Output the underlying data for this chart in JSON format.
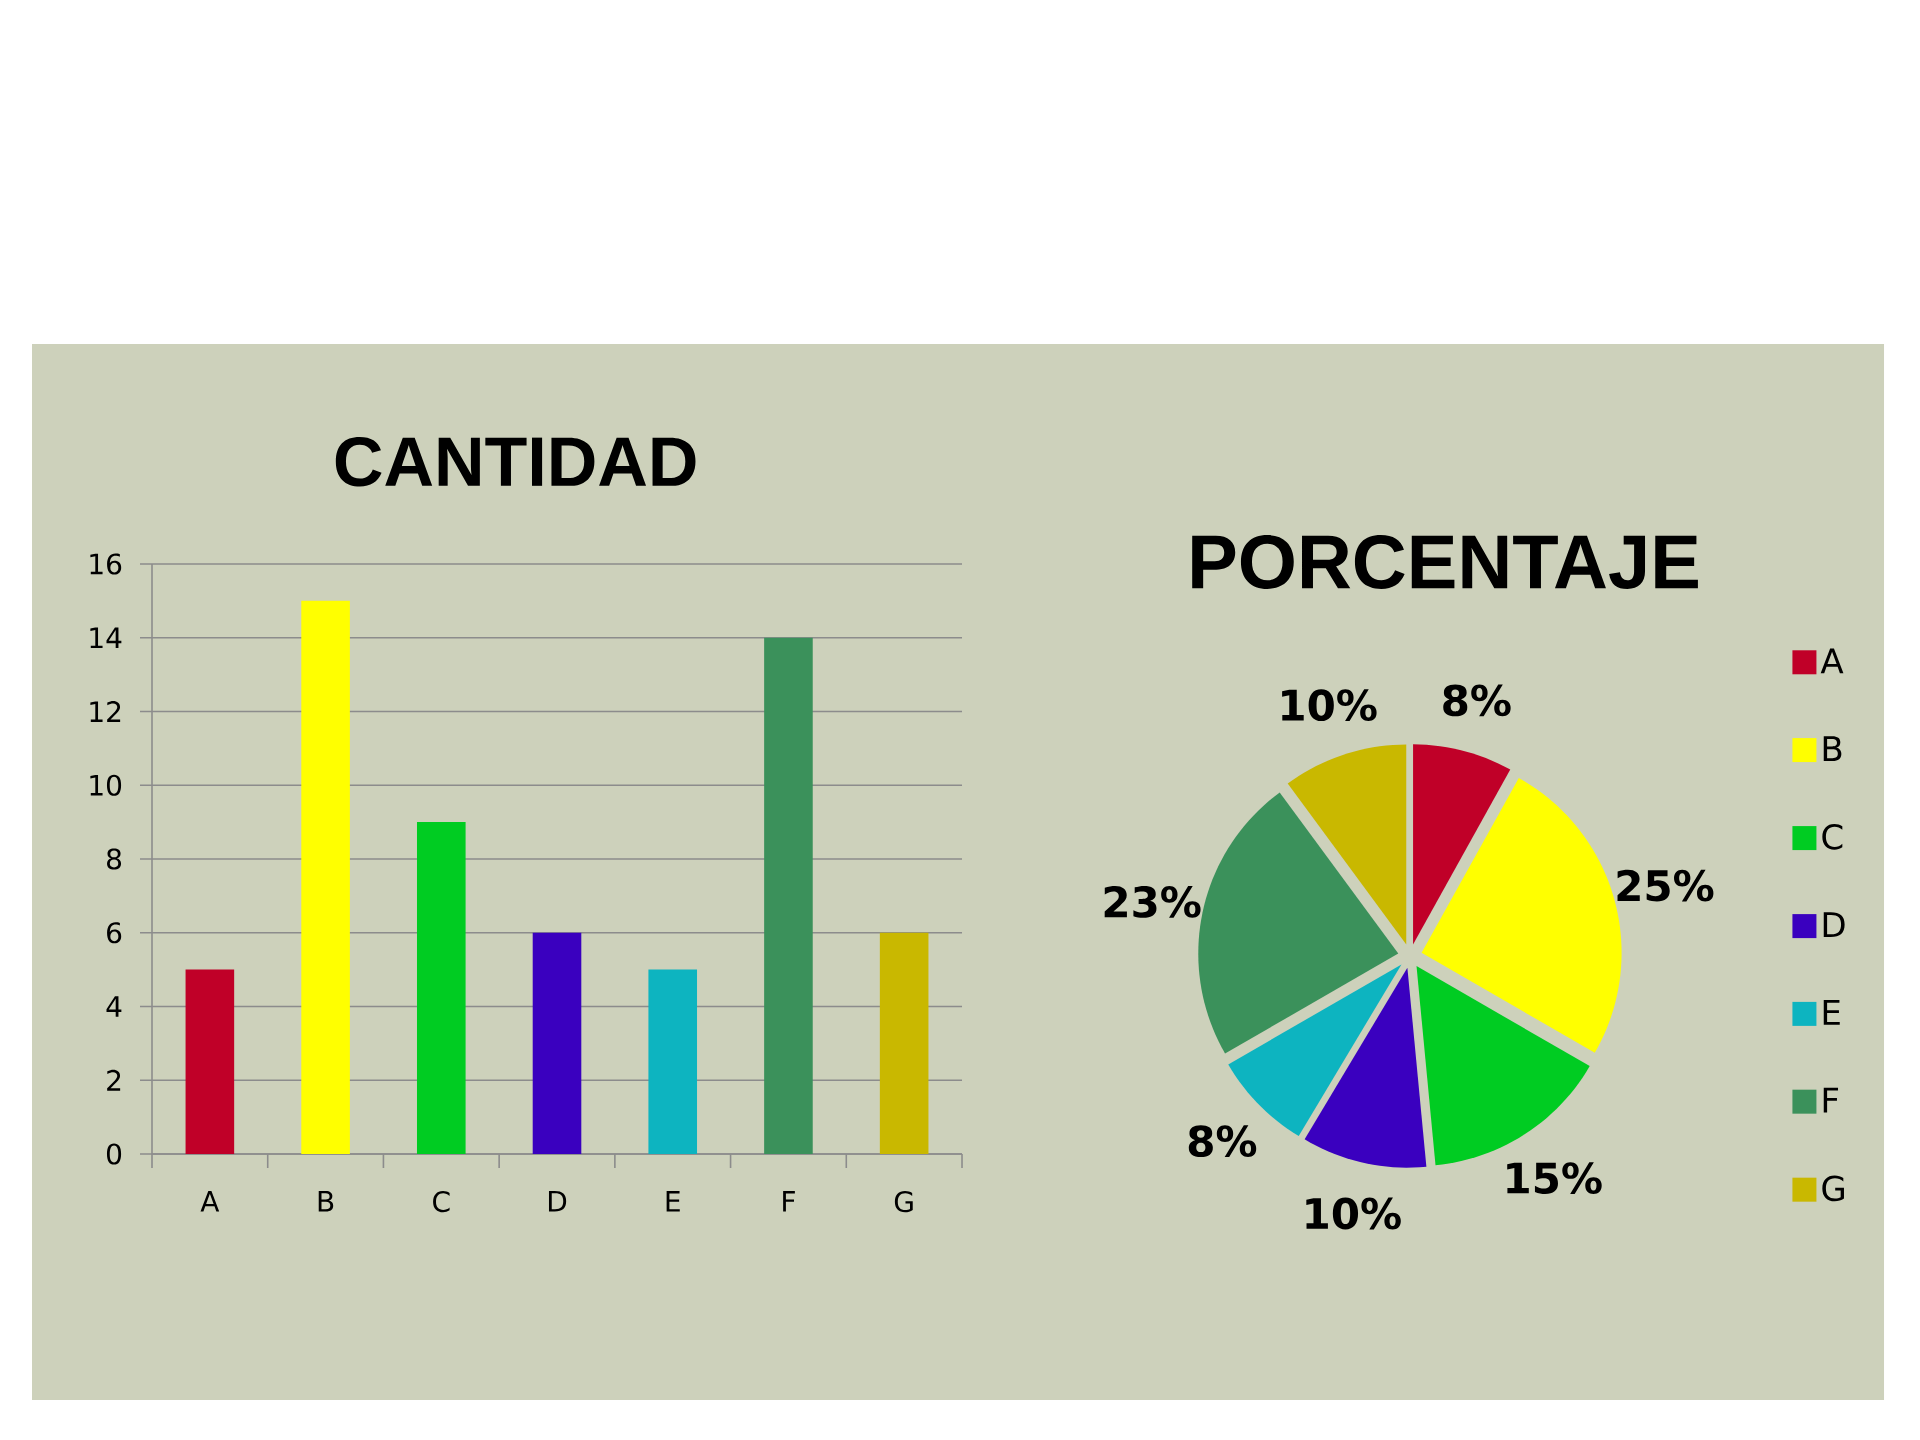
{
  "chart_data": [
    {
      "type": "bar",
      "title": "CANTIDAD",
      "categories": [
        "A",
        "B",
        "C",
        "D",
        "E",
        "F",
        "G"
      ],
      "values": [
        5,
        15,
        9,
        6,
        5,
        14,
        6
      ],
      "colors": [
        "#c00028",
        "#ffff00",
        "#00cc22",
        "#3a00bf",
        "#0db4c0",
        "#3b915b",
        "#c9b800"
      ],
      "ylim": [
        0,
        16
      ],
      "yticks": [
        0,
        2,
        4,
        6,
        8,
        10,
        12,
        14,
        16
      ],
      "grid": "y"
    },
    {
      "type": "pie",
      "title": "PORCENTAJE",
      "categories": [
        "A",
        "B",
        "C",
        "D",
        "E",
        "F",
        "G"
      ],
      "values": [
        8,
        25,
        15,
        10,
        8,
        23,
        10
      ],
      "value_labels": [
        "8%",
        "25%",
        "15%",
        "10%",
        "8%",
        "23%",
        "10%"
      ],
      "colors": [
        "#c00028",
        "#ffff00",
        "#00cc22",
        "#3a00bf",
        "#0db4c0",
        "#3b915b",
        "#c9b800"
      ],
      "legend": "right"
    }
  ]
}
